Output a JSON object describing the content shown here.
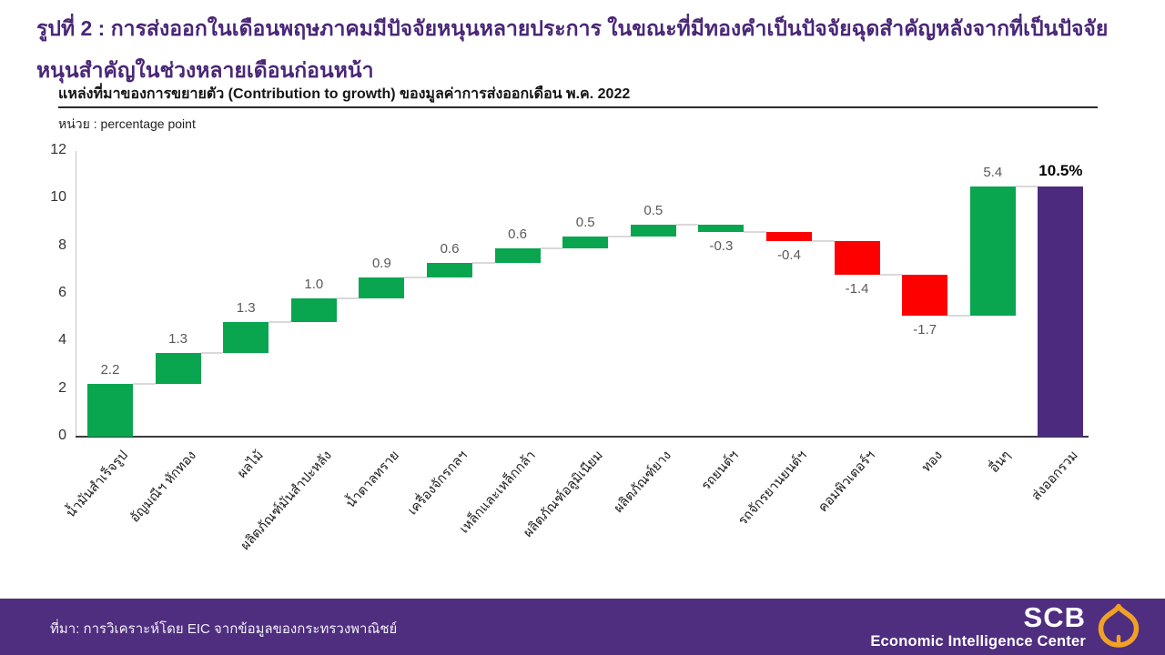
{
  "header": {
    "title": "รูปที่ 2 : การส่งออกในเดือนพฤษภาคมมีปัจจัยหนุนหลายประการ ในขณะที่มีทองคำเป็นปัจจัยฉุดสำคัญหลังจากที่เป็นปัจจัยหนุนสำคัญในช่วงหลายเดือนก่อนหน้า"
  },
  "chart_data": {
    "type": "bar",
    "subtype": "waterfall",
    "title": "แหล่งที่มาของการขยายตัว (Contribution to growth) ของมูลค่าการส่งออกเดือน พ.ค. 2022",
    "unit_label": "หน่วย : percentage point",
    "xlabel": "",
    "ylabel": "percentage point",
    "ylim": [
      0,
      12
    ],
    "yticks": [
      0,
      2,
      4,
      6,
      8,
      10,
      12
    ],
    "grid": false,
    "legend": "none",
    "categories": [
      "น้ำมันสำเร็จรูป",
      "อัญมณีฯ หักทอง",
      "ผลไม้",
      "ผลิตภัณฑ์มันสำปะหลัง",
      "น้ำตาลทราย",
      "เครื่องจักรกลฯ",
      "เหล็กและเหล็กกล้า",
      "ผลิตภัณฑ์อลูมิเนียม",
      "ผลิตภัณฑ์ยาง",
      "รถยนต์ฯ",
      "รถจักรยานยนต์ฯ",
      "คอมพิวเตอร์ฯ",
      "ทอง",
      "อื่นๆ",
      "ส่งออกรวม"
    ],
    "values": [
      2.2,
      1.3,
      1.3,
      1.0,
      0.9,
      0.6,
      0.6,
      0.5,
      0.5,
      -0.3,
      -0.4,
      -1.4,
      -1.7,
      5.4,
      10.5
    ],
    "display_labels": [
      "2.2",
      "1.3",
      "1.3",
      "1.0",
      "0.9",
      "0.6",
      "0.6",
      "0.5",
      "0.5",
      "-0.3",
      "-0.4",
      "-1.4",
      "-1.7",
      "5.4",
      "10.5%"
    ],
    "bar_colors": [
      "green",
      "green",
      "green",
      "green",
      "green",
      "green",
      "green",
      "green",
      "green",
      "green",
      "red",
      "red",
      "red",
      "green",
      "total"
    ],
    "colors": {
      "green": "#09a54f",
      "red": "#fe0000",
      "total": "#4c2a7e",
      "connector": "#d9d9d9"
    }
  },
  "footer": {
    "source": "ที่มา: การวิเคราะห์โดย EIC จากข้อมูลของกระทรวงพาณิชย์",
    "logo_main": "SCB",
    "logo_sub": "Economic Intelligence Center",
    "logo_icon_color": "#f0a125",
    "background_color": "#4f2d7f"
  }
}
